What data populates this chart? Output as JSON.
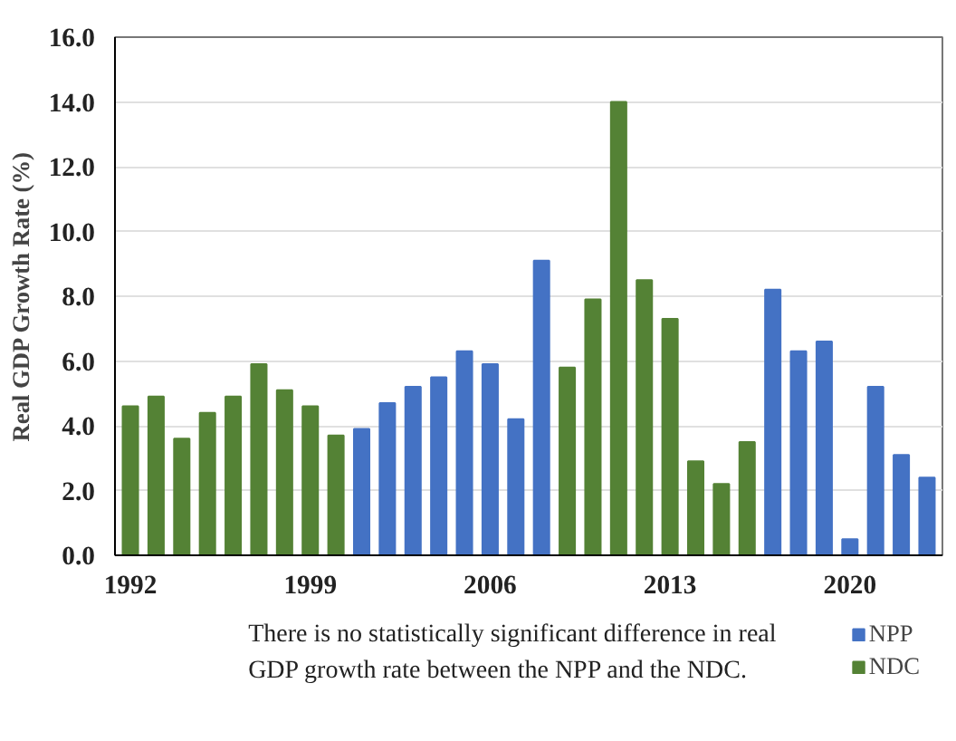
{
  "chart_data": {
    "type": "bar",
    "ylabel": "Real GDP Growth Rate (%)",
    "x": [
      1992,
      1993,
      1994,
      1995,
      1996,
      1997,
      1998,
      1999,
      2000,
      2001,
      2002,
      2003,
      2004,
      2005,
      2006,
      2007,
      2008,
      2009,
      2010,
      2011,
      2012,
      2013,
      2014,
      2015,
      2016,
      2017,
      2018,
      2019,
      2020,
      2021,
      2022,
      2023
    ],
    "series": [
      {
        "name": "NPP",
        "color": "#4472c4",
        "values": [
          null,
          null,
          null,
          null,
          null,
          null,
          null,
          null,
          null,
          3.9,
          4.7,
          5.2,
          5.5,
          6.3,
          5.9,
          4.2,
          9.1,
          null,
          null,
          null,
          null,
          null,
          null,
          null,
          null,
          8.2,
          6.3,
          6.6,
          0.5,
          5.2,
          3.1,
          2.4
        ]
      },
      {
        "name": "NDC",
        "color": "#548235",
        "values": [
          4.6,
          4.9,
          3.6,
          4.4,
          4.9,
          5.9,
          5.1,
          4.6,
          3.7,
          null,
          null,
          null,
          null,
          null,
          null,
          null,
          null,
          5.8,
          7.9,
          14.0,
          8.5,
          7.3,
          2.9,
          2.2,
          3.5,
          null,
          null,
          null,
          null,
          null,
          null,
          null
        ]
      }
    ],
    "xlim": [
      1991.4,
      2023.6
    ],
    "xticks": [
      1992,
      1999,
      2006,
      2013,
      2020
    ],
    "ylim": [
      0,
      16
    ],
    "yticks": [
      {
        "value": 0,
        "label": "0.0"
      },
      {
        "value": 2,
        "label": "2.0"
      },
      {
        "value": 4,
        "label": "4.0"
      },
      {
        "value": 6,
        "label": "6.0"
      },
      {
        "value": 8,
        "label": "8.0"
      },
      {
        "value": 10,
        "label": "10.0"
      },
      {
        "value": 12,
        "label": "12.0"
      },
      {
        "value": 14,
        "label": "14.0"
      },
      {
        "value": 16,
        "label": "16.0"
      }
    ],
    "grid": "y",
    "legend": "bottom right",
    "annotations": [
      "There is no statistically  significant  difference in real",
      "GDP growth rate between the NPP and the NDC."
    ]
  }
}
